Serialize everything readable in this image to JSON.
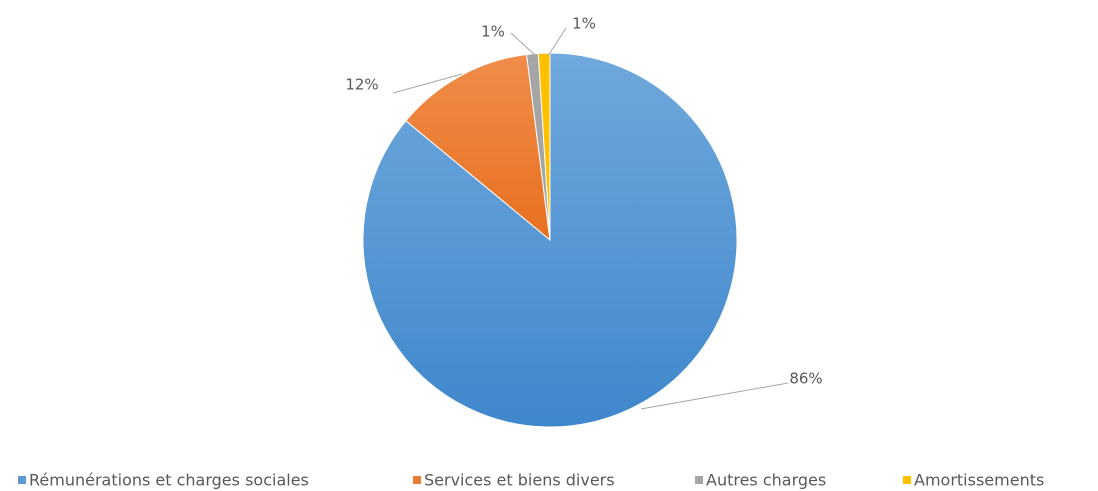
{
  "chart_data": {
    "type": "pie",
    "categories": [
      "Rémunérations et charges sociales",
      "Services et biens divers",
      "Autres charges",
      "Amortissements"
    ],
    "values": [
      86,
      12,
      1,
      1
    ],
    "value_labels": [
      "86%",
      "12%",
      "1%",
      "1%"
    ],
    "colors": [
      "#5b9bd5",
      "#ed7d31",
      "#a5a5a5",
      "#ffc000"
    ],
    "legend": "bottom"
  }
}
